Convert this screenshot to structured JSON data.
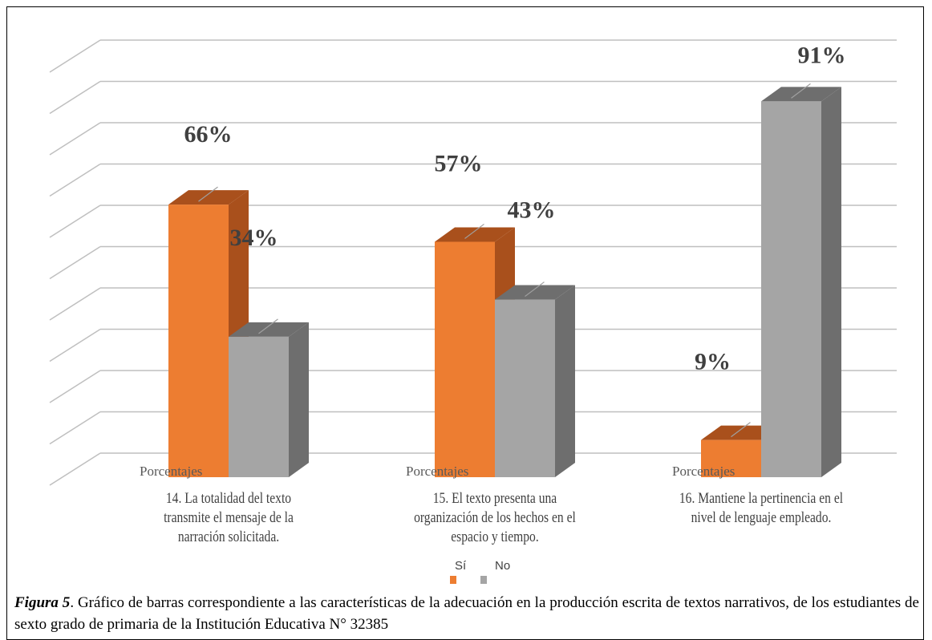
{
  "chart_data": {
    "type": "bar3d",
    "categories": [
      "14. La totalidad del texto transmite el mensaje de la narración solicitada.",
      "15. El texto presenta una organización de los hechos en el espacio y tiempo.",
      "16. Mantiene la pertinencia en el nivel de lenguaje empleado."
    ],
    "category_axis_labels": [
      "Porcentajes",
      "Porcentajes",
      "Porcentajes"
    ],
    "series": [
      {
        "name": "Sí",
        "color": "#ED7D31",
        "side_color": "#A9501C",
        "values": [
          66,
          57,
          9
        ],
        "value_labels": [
          "66%",
          "57%",
          "9%"
        ]
      },
      {
        "name": "No",
        "color": "#A5A5A5",
        "side_color": "#6E6E6E",
        "values": [
          34,
          43,
          91
        ],
        "value_labels": [
          "34%",
          "43%",
          "91%"
        ]
      }
    ],
    "ylim": [
      0,
      100
    ],
    "yticks": [
      0,
      10,
      20,
      30,
      40,
      50,
      60,
      70,
      80,
      90,
      100
    ],
    "grid": true,
    "caption_lead": "Figura 5",
    "caption": ". Gráfico de barras correspondiente a las características de la adecuación en la producción escrita de textos narrativos, de los estudiantes de sexto grado de primaria de la Institución Educativa N° 32385"
  }
}
